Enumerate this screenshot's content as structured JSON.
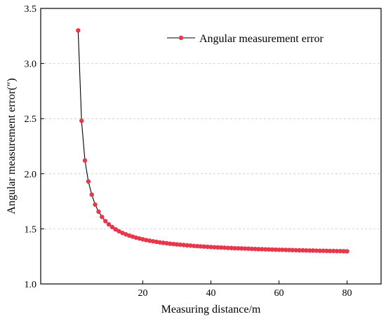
{
  "chart_data": {
    "type": "line",
    "xlabel": "Measuring distance/m",
    "ylabel": "Angular measurement error(″)",
    "xlim": [
      -10,
      90
    ],
    "ylim": [
      1.0,
      3.5
    ],
    "xticks": [
      {
        "value": 20,
        "label": "20"
      },
      {
        "value": 40,
        "label": "40"
      },
      {
        "value": 60,
        "label": "60"
      },
      {
        "value": 80,
        "label": "80"
      }
    ],
    "yticks": [
      {
        "value": 1.0,
        "label": "1.0"
      },
      {
        "value": 1.5,
        "label": "1.5"
      },
      {
        "value": 2.0,
        "label": "2.0"
      },
      {
        "value": 2.5,
        "label": "2.5"
      },
      {
        "value": 3.0,
        "label": "3.0"
      },
      {
        "value": 3.5,
        "label": "3.5"
      }
    ],
    "grid": "horizontal-dashed",
    "legend_position": "top-right",
    "series": [
      {
        "name": "Angular measurement error",
        "color": "#e8364a",
        "line_color": "#000000",
        "x": [
          1,
          2,
          3,
          4,
          5,
          6,
          7,
          8,
          9,
          10,
          11,
          12,
          13,
          14,
          15,
          16,
          17,
          18,
          19,
          20,
          21,
          22,
          23,
          24,
          25,
          26,
          27,
          28,
          29,
          30,
          31,
          32,
          33,
          34,
          35,
          36,
          37,
          38,
          39,
          40,
          41,
          42,
          43,
          44,
          45,
          46,
          47,
          48,
          49,
          50,
          51,
          52,
          53,
          54,
          55,
          56,
          57,
          58,
          59,
          60,
          61,
          62,
          63,
          64,
          65,
          66,
          67,
          68,
          69,
          70,
          71,
          72,
          73,
          74,
          75,
          76,
          77,
          78,
          79,
          80
        ],
        "y": [
          3.3,
          2.48,
          2.12,
          1.93,
          1.81,
          1.72,
          1.656,
          1.608,
          1.57,
          1.54,
          1.516,
          1.495,
          1.478,
          1.463,
          1.45,
          1.439,
          1.429,
          1.42,
          1.412,
          1.405,
          1.398,
          1.392,
          1.387,
          1.382,
          1.377,
          1.373,
          1.369,
          1.365,
          1.362,
          1.359,
          1.356,
          1.353,
          1.35,
          1.348,
          1.345,
          1.343,
          1.341,
          1.339,
          1.337,
          1.335,
          1.333,
          1.332,
          1.33,
          1.329,
          1.327,
          1.326,
          1.324,
          1.323,
          1.322,
          1.321,
          1.32,
          1.318,
          1.317,
          1.316,
          1.315,
          1.314,
          1.313,
          1.312,
          1.311,
          1.31,
          1.31,
          1.309,
          1.308,
          1.307,
          1.306,
          1.305,
          1.305,
          1.304,
          1.303,
          1.303,
          1.302,
          1.301,
          1.301,
          1.3,
          1.299,
          1.299,
          1.298,
          1.298,
          1.297,
          1.296
        ]
      }
    ]
  }
}
